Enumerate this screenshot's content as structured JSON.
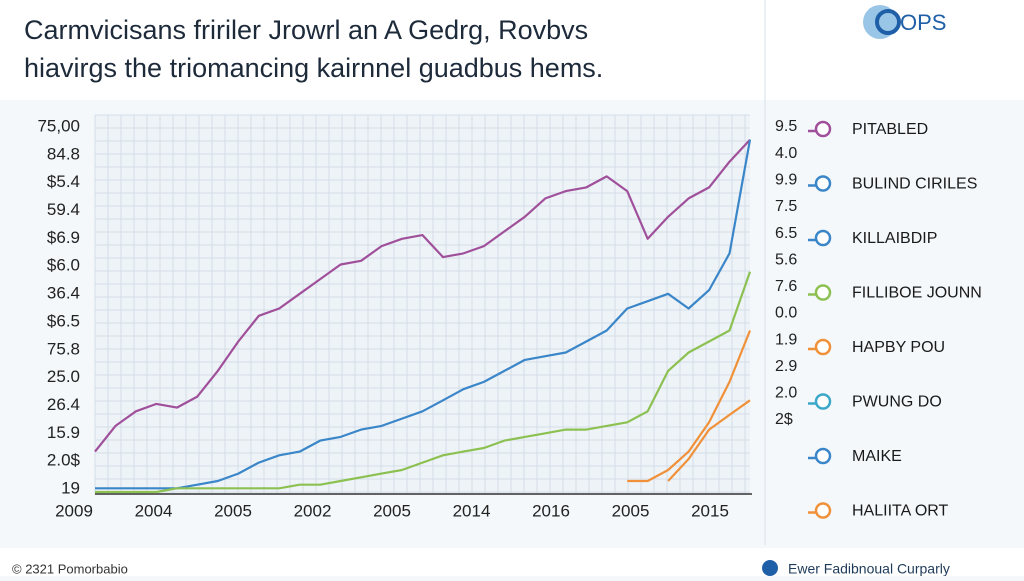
{
  "header": {
    "title_line_1": "Carmvicisans fririler Jrowrl an A Gedrg, Rovbvs",
    "title_line_2": "hiavirgs  the triomancing kairnnel guadbus hems.",
    "logo": "OPS"
  },
  "chart_data": {
    "type": "line",
    "y_axis_labels": [
      "75,00",
      "84.8",
      "$5.4",
      "59.4",
      "$6.9",
      "$6.0",
      "36.4",
      "$6.5",
      "75.8",
      "25.0",
      "26.4",
      "15.9",
      "2.0$",
      "19"
    ],
    "y2_axis_labels": [
      "9.5",
      "4.0",
      "9.9",
      "7.5",
      "6.5",
      "5.6",
      "7.6",
      "0.0",
      "1.9",
      "2.9",
      "2.0",
      "2$"
    ],
    "x_axis_labels": [
      "2009",
      "2004",
      "2005",
      "2002",
      "2005",
      "2014",
      "2016",
      "2005",
      "2015"
    ],
    "x": [
      0,
      1,
      2,
      3,
      4,
      5,
      6,
      7,
      8,
      9,
      10,
      11,
      12,
      13,
      14,
      15,
      16,
      17,
      18,
      19,
      20,
      21,
      22,
      23,
      24,
      25,
      26,
      27,
      28,
      29,
      30,
      31,
      32
    ],
    "xlim": [
      0,
      32
    ],
    "ylim": [
      0,
      100
    ],
    "grid": true,
    "series": [
      {
        "name": "PITABLED",
        "color": "#a0509a",
        "values": [
          11,
          18,
          22,
          24,
          23,
          26,
          33,
          41,
          48,
          50,
          54,
          58,
          62,
          63,
          67,
          69,
          70,
          64,
          65,
          67,
          71,
          75,
          80,
          82,
          83,
          86,
          82,
          69,
          75,
          80,
          83,
          90,
          96
        ]
      },
      {
        "name": "BULIND CIRILES",
        "color": "#3a86c8",
        "values": [
          1,
          1,
          1,
          1,
          1,
          2,
          3,
          5,
          8,
          10,
          11,
          14,
          15,
          17,
          18,
          20,
          22,
          25,
          28,
          30,
          33,
          36,
          37,
          38,
          41,
          44,
          50,
          52,
          54,
          50,
          55,
          65,
          96
        ]
      },
      {
        "name": "KILLAIBDIP",
        "color": "#3a86c8"
      },
      {
        "name": "FILLIBOE JOUNN",
        "color": "#8cc152",
        "values": [
          0,
          0,
          0,
          0,
          1,
          1,
          1,
          1,
          1,
          1,
          2,
          2,
          3,
          4,
          5,
          6,
          8,
          10,
          11,
          12,
          14,
          15,
          16,
          17,
          17,
          18,
          19,
          22,
          33,
          38,
          41,
          44,
          60
        ]
      },
      {
        "name": "HAPBY POU",
        "color": "#f0913a",
        "values": [
          null,
          null,
          null,
          null,
          null,
          null,
          null,
          null,
          null,
          null,
          null,
          null,
          null,
          null,
          null,
          null,
          null,
          null,
          null,
          null,
          null,
          null,
          null,
          null,
          null,
          null,
          3,
          3,
          6,
          11,
          19,
          30,
          44
        ]
      },
      {
        "name": "PWUNG DO",
        "color": "#3aa8c8"
      },
      {
        "name": "MAIKE",
        "color": "#3a86c8"
      },
      {
        "name": "HALIITA ORT",
        "color": "#f0913a",
        "values": [
          null,
          null,
          null,
          null,
          null,
          null,
          null,
          null,
          null,
          null,
          null,
          null,
          null,
          null,
          null,
          null,
          null,
          null,
          null,
          null,
          null,
          null,
          null,
          null,
          null,
          null,
          null,
          null,
          3,
          9,
          17,
          21,
          25
        ]
      }
    ]
  },
  "footer": {
    "left": "© 2321 Pomorbabio",
    "right": "Ewer Fadibnoual Curparly"
  }
}
